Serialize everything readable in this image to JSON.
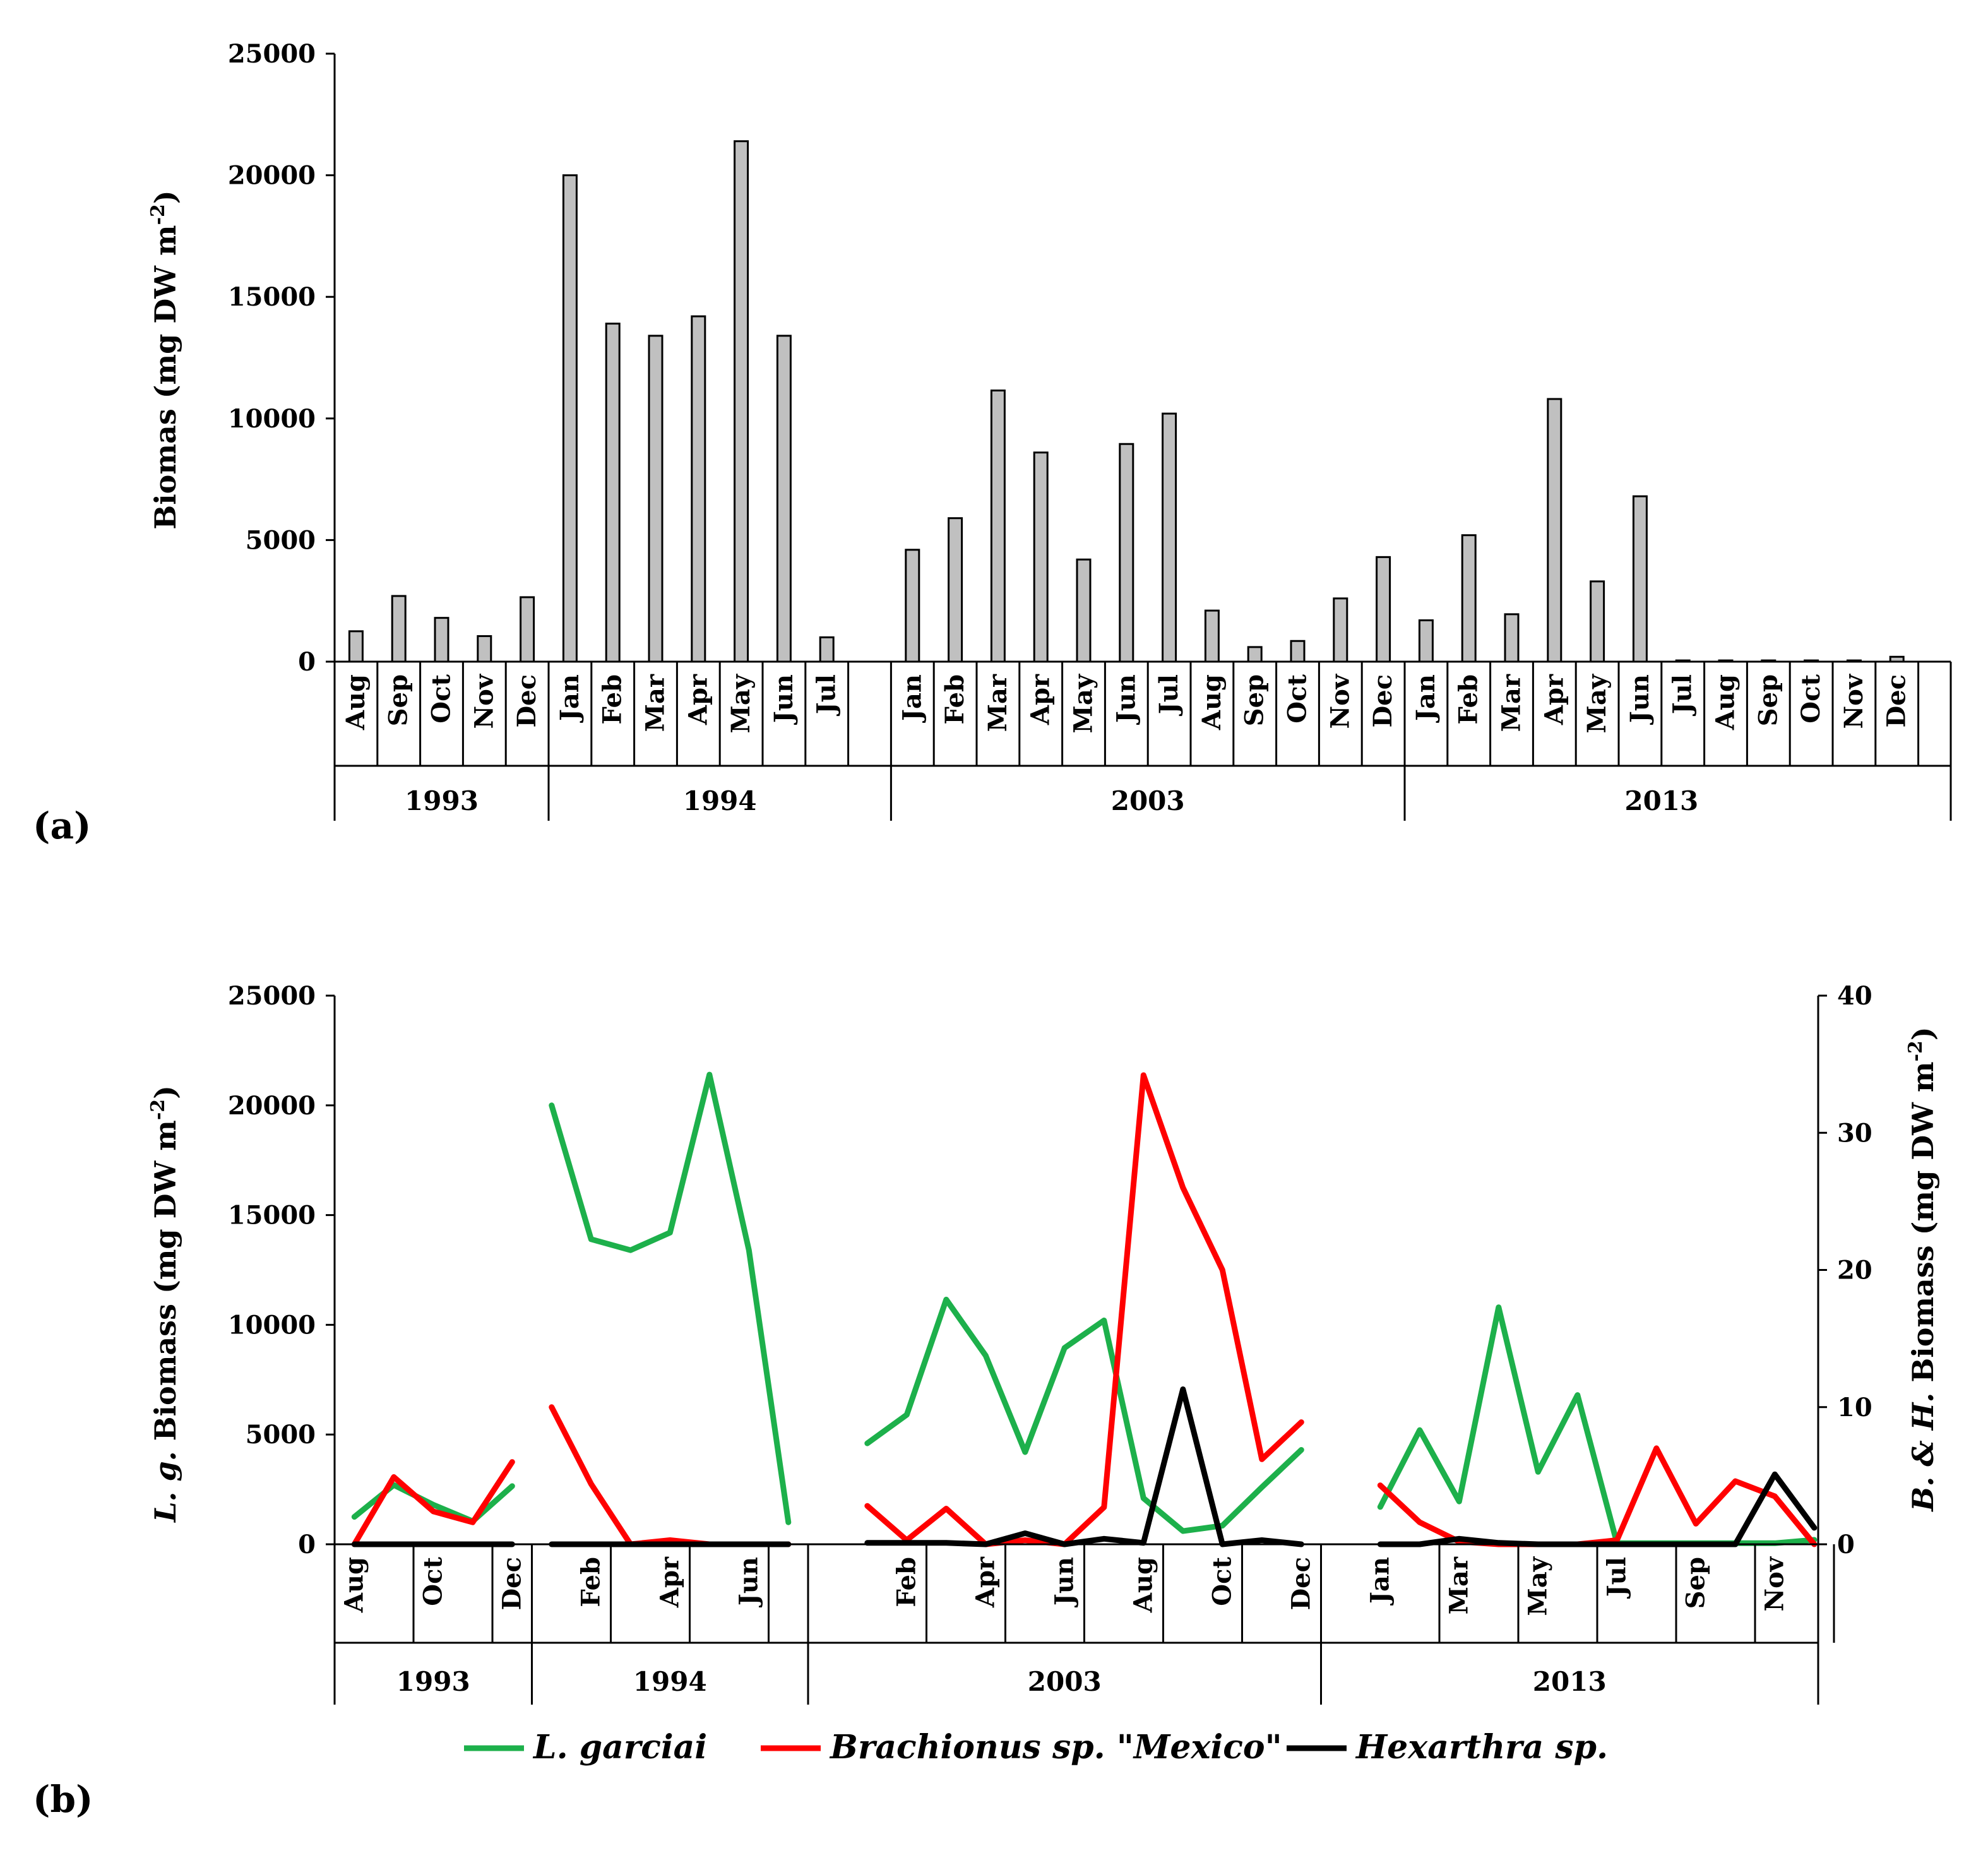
{
  "panel_a": {
    "label": "(a)",
    "chart_data": {
      "type": "bar",
      "ylabel_main": "Biomas (mg DW m",
      "ylabel_sup": "-2",
      "ylabel_end": ")",
      "ylim": [
        0,
        25000
      ],
      "yticks": [
        "0",
        "5000",
        "10000",
        "15000",
        "20000",
        "25000"
      ],
      "bar_color": "#c0c0c0",
      "groups": [
        {
          "year": "1993",
          "categories": [
            "Aug",
            "Sep",
            "Oct",
            "Nov",
            "Dec"
          ],
          "values": [
            1250,
            2700,
            1800,
            1050,
            2650
          ]
        },
        {
          "year": "1994",
          "categories": [
            "Jan",
            "Feb",
            "Mar",
            "Apr",
            "May",
            "Jun",
            "Jul"
          ],
          "values": [
            20000,
            13900,
            13400,
            14200,
            21400,
            13400,
            1000
          ]
        },
        {
          "year": "2003",
          "categories": [
            "Jan",
            "Feb",
            "Mar",
            "Apr",
            "May",
            "Jun",
            "Jul",
            "Aug",
            "Sep",
            "Oct",
            "Nov",
            "Dec"
          ],
          "values": [
            4600,
            5900,
            11150,
            8600,
            4200,
            8950,
            10200,
            2100,
            600,
            850,
            2600,
            4300
          ]
        },
        {
          "year": "2013",
          "categories": [
            "Jan",
            "Feb",
            "Mar",
            "Apr",
            "May",
            "Jun",
            "Jul",
            "Aug",
            "Sep",
            "Oct",
            "Nov",
            "Dec"
          ],
          "values": [
            1700,
            5200,
            1950,
            10800,
            3300,
            6800,
            50,
            50,
            50,
            50,
            50,
            200
          ]
        }
      ]
    }
  },
  "panel_b": {
    "label": "(b)",
    "chart_data": {
      "type": "line",
      "ylabel_left_italic": "L. g.",
      "ylabel_left_main": " Biomass (mg DW m",
      "ylabel_right_italic": "B. & H.",
      "ylabel_right_main": " Biomass (mg DW m",
      "ylabel_sup": "-2",
      "ylabel_end": ")",
      "ylim_left": [
        0,
        25000
      ],
      "ylim_right": [
        0,
        40
      ],
      "yticks_left": [
        "0",
        "5000",
        "10000",
        "15000",
        "20000",
        "25000"
      ],
      "yticks_right": [
        "0",
        "10",
        "20",
        "30",
        "40"
      ],
      "years": [
        "1993",
        "1994",
        "2003",
        "2013"
      ],
      "month_labels": [
        [
          "Aug",
          "",
          "Oct",
          "",
          "Dec"
        ],
        [
          "",
          "Feb",
          "",
          "Apr",
          "",
          "Jun",
          ""
        ],
        [
          "",
          "Feb",
          "",
          "Apr",
          "",
          "Jun",
          "",
          "Aug",
          "",
          "Oct",
          "",
          "Dec"
        ],
        [
          "Jan",
          "",
          "Mar",
          "",
          "May",
          "",
          "Jul",
          "",
          "Sep",
          "",
          "Nov",
          ""
        ]
      ],
      "series": [
        {
          "name": "L. garciai",
          "axis": "left",
          "color": "#1db04b",
          "values": [
            [
              1250,
              2700,
              1800,
              1050,
              2650
            ],
            [
              20000,
              13900,
              13400,
              14200,
              21400,
              13400,
              1000
            ],
            [
              4600,
              5900,
              11150,
              8600,
              4200,
              8950,
              10200,
              2100,
              600,
              850,
              2600,
              4300
            ],
            [
              1700,
              5200,
              1950,
              10800,
              3300,
              6800,
              50,
              50,
              50,
              50,
              50,
              200
            ]
          ]
        },
        {
          "name": "Brachionus sp. \"Mexico\"",
          "axis": "right",
          "color": "#ff0000",
          "values": [
            [
              0,
              4.9,
              2.4,
              1.6,
              6.0
            ],
            [
              10.0,
              4.4,
              0,
              0.3,
              0,
              0,
              0
            ],
            [
              2.8,
              0.3,
              2.6,
              0,
              0.3,
              0,
              2.7,
              34.2,
              26.0,
              20.0,
              6.2,
              8.9
            ],
            [
              4.3,
              1.6,
              0.2,
              0,
              0,
              0,
              0.3,
              7.0,
              1.5,
              4.6,
              3.5,
              0
            ]
          ]
        },
        {
          "name": "Hexarthra sp.",
          "axis": "right",
          "color": "#000000",
          "values": [
            [
              0,
              0,
              0,
              0,
              0
            ],
            [
              0,
              0,
              0,
              0,
              0,
              0,
              0
            ],
            [
              0.1,
              0.1,
              0.1,
              0,
              0.8,
              0,
              0.4,
              0.1,
              11.3,
              0,
              0.3,
              0
            ],
            [
              0,
              0,
              0.4,
              0.1,
              0,
              0,
              0,
              0,
              0,
              0,
              5.1,
              1.2
            ]
          ]
        }
      ]
    }
  }
}
